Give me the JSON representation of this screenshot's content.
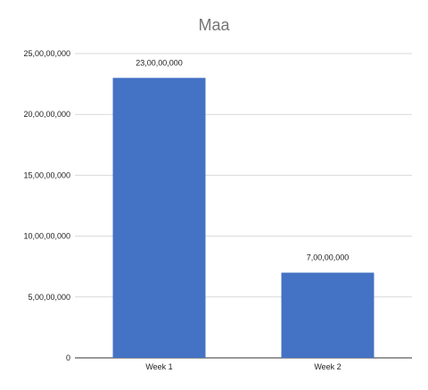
{
  "chart_data": {
    "type": "bar",
    "title": "Maa",
    "xlabel": "",
    "ylabel": "",
    "categories": [
      "Week 1",
      "Week 2"
    ],
    "values": [
      230000000,
      70000000
    ],
    "data_labels": [
      "23,00,00,000",
      "7,00,00,000"
    ],
    "ylim": [
      0,
      250000000
    ],
    "y_ticks": [
      0,
      50000000,
      100000000,
      150000000,
      200000000,
      250000000
    ],
    "y_tick_labels": [
      "0",
      "5,00,00,000",
      "10,00,00,000",
      "15,00,00,000",
      "20,00,00,000",
      "25,00,00,000"
    ],
    "bar_color": "#4472c4",
    "grid": true,
    "legend": "none"
  }
}
